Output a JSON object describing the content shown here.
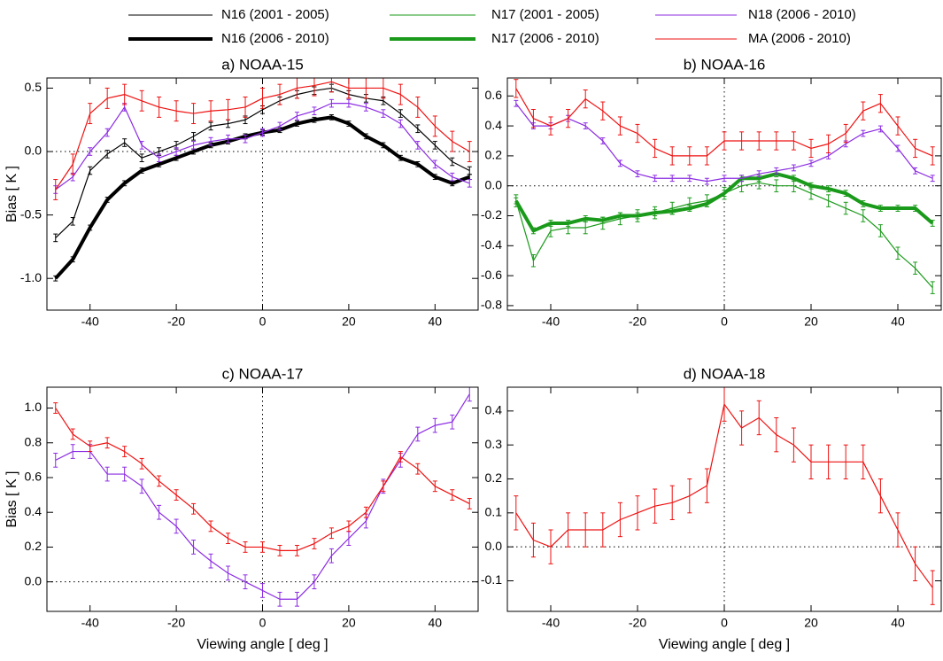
{
  "chart_data": [
    {
      "type": "line",
      "title": "a)  NOAA-15",
      "ylabel": "Bias [  K  ]",
      "x": [
        -48,
        -44,
        -40,
        -36,
        -32,
        -28,
        -24,
        -20,
        -16,
        -12,
        -8,
        -4,
        0,
        4,
        8,
        12,
        16,
        20,
        24,
        28,
        32,
        36,
        40,
        44,
        48
      ],
      "xlim": [
        -50,
        50
      ],
      "xticks": [
        -40,
        -20,
        0,
        20,
        40
      ],
      "ylim": [
        -1.25,
        0.58
      ],
      "yticks": [
        {
          "value": -1.0,
          "label": "-1.0"
        },
        -0.5,
        {
          "value": 0.0,
          "label": "0.0"
        },
        0.5
      ],
      "zero_lines": true,
      "series": [
        {
          "name": "N16 (2001 - 2005)",
          "color": "#000000",
          "thick": false,
          "error": 0.03,
          "values": [
            -0.68,
            -0.55,
            -0.15,
            -0.02,
            0.07,
            -0.05,
            0.0,
            0.05,
            0.12,
            0.2,
            0.22,
            0.25,
            0.33,
            0.4,
            0.45,
            0.48,
            0.5,
            0.45,
            0.42,
            0.4,
            0.3,
            0.18,
            0.05,
            -0.08,
            -0.15
          ]
        },
        {
          "name": "N16 (2006 - 2010)",
          "color": "#000000",
          "thick": true,
          "error": 0.02,
          "values": [
            -1.0,
            -0.85,
            -0.6,
            -0.38,
            -0.25,
            -0.15,
            -0.1,
            -0.05,
            0.0,
            0.05,
            0.08,
            0.12,
            0.15,
            0.17,
            0.22,
            0.25,
            0.27,
            0.22,
            0.12,
            0.05,
            -0.05,
            -0.1,
            -0.2,
            -0.25,
            -0.2
          ]
        },
        {
          "name": "N18 (2006 - 2010)",
          "color": "#8b2be2",
          "thick": false,
          "error": 0.03,
          "values": [
            -0.3,
            -0.2,
            0.0,
            0.15,
            0.35,
            0.05,
            -0.05,
            0.0,
            0.05,
            0.08,
            0.1,
            0.1,
            0.15,
            0.2,
            0.28,
            0.32,
            0.38,
            0.38,
            0.35,
            0.3,
            0.22,
            0.05,
            -0.1,
            -0.2,
            -0.25
          ]
        },
        {
          "name": "MA (2006 - 2010)",
          "color": "#ee1111",
          "thick": false,
          "error": 0.08,
          "values": [
            -0.3,
            -0.1,
            0.3,
            0.42,
            0.45,
            0.4,
            0.35,
            0.32,
            0.3,
            0.32,
            0.33,
            0.35,
            0.42,
            0.45,
            0.5,
            0.52,
            0.55,
            0.5,
            0.5,
            0.5,
            0.45,
            0.35,
            0.2,
            0.08,
            0.0
          ]
        }
      ]
    },
    {
      "type": "line",
      "title": "b)  NOAA-16",
      "x": [
        -48,
        -44,
        -40,
        -36,
        -32,
        -28,
        -24,
        -20,
        -16,
        -12,
        -8,
        -4,
        0,
        4,
        8,
        12,
        16,
        20,
        24,
        28,
        32,
        36,
        40,
        44,
        48
      ],
      "xlim": [
        -50,
        50
      ],
      "xticks": [
        -40,
        -20,
        0,
        20,
        40
      ],
      "ylim": [
        -0.83,
        0.72
      ],
      "yticks": [
        -0.8,
        -0.6,
        -0.4,
        -0.2,
        {
          "value": 0.0,
          "label": "0.0"
        },
        0.2,
        0.4,
        0.6
      ],
      "zero_lines": true,
      "series": [
        {
          "name": "N17 (2001 - 2005)",
          "color": "#1a9a1a",
          "thick": false,
          "error": 0.04,
          "values": [
            -0.1,
            -0.5,
            -0.3,
            -0.28,
            -0.28,
            -0.25,
            -0.22,
            -0.2,
            -0.18,
            -0.15,
            -0.12,
            -0.1,
            -0.05,
            0.0,
            0.02,
            0.0,
            0.0,
            -0.05,
            -0.1,
            -0.15,
            -0.2,
            -0.3,
            -0.45,
            -0.55,
            -0.68
          ]
        },
        {
          "name": "N17 (2006 - 2010)",
          "color": "#1a9a1a",
          "thick": true,
          "error": 0.02,
          "values": [
            -0.1,
            -0.3,
            -0.25,
            -0.25,
            -0.22,
            -0.23,
            -0.2,
            -0.2,
            -0.18,
            -0.17,
            -0.15,
            -0.12,
            -0.05,
            0.05,
            0.05,
            0.08,
            0.05,
            0.0,
            -0.02,
            -0.05,
            -0.12,
            -0.15,
            -0.15,
            -0.15,
            -0.25
          ]
        },
        {
          "color": "#8b2be2",
          "thick": false,
          "error": 0.02,
          "values": [
            0.55,
            0.4,
            0.4,
            0.45,
            0.4,
            0.3,
            0.15,
            0.08,
            0.05,
            0.05,
            0.05,
            0.03,
            0.05,
            0.05,
            0.08,
            0.1,
            0.12,
            0.15,
            0.2,
            0.28,
            0.35,
            0.38,
            0.25,
            0.1,
            0.05
          ]
        },
        {
          "color": "#ee1111",
          "thick": false,
          "error": 0.06,
          "values": [
            0.65,
            0.45,
            0.4,
            0.45,
            0.58,
            0.5,
            0.4,
            0.35,
            0.25,
            0.2,
            0.2,
            0.2,
            0.3,
            0.3,
            0.3,
            0.3,
            0.3,
            0.25,
            0.28,
            0.35,
            0.5,
            0.55,
            0.4,
            0.25,
            0.2
          ]
        }
      ]
    },
    {
      "type": "line",
      "title": "c)  NOAA-17",
      "ylabel": "Bias [  K  ]",
      "xlabel": "Viewing angle [ deg ]",
      "x": [
        -48,
        -44,
        -40,
        -36,
        -32,
        -28,
        -24,
        -20,
        -16,
        -12,
        -8,
        -4,
        0,
        4,
        8,
        12,
        16,
        20,
        24,
        28,
        32,
        36,
        40,
        44,
        48
      ],
      "xlim": [
        -50,
        50
      ],
      "xticks": [
        -40,
        -20,
        0,
        20,
        40
      ],
      "ylim": [
        -0.17,
        1.12
      ],
      "yticks": [
        {
          "value": 0.0,
          "label": "0.0"
        },
        0.2,
        0.4,
        0.6,
        0.8,
        {
          "value": 1.0,
          "label": "1.0"
        }
      ],
      "zero_lines": true,
      "series": [
        {
          "color": "#8b2be2",
          "thick": false,
          "error": 0.04,
          "values": [
            0.7,
            0.75,
            0.75,
            0.62,
            0.62,
            0.55,
            0.4,
            0.32,
            0.2,
            0.12,
            0.05,
            0.0,
            -0.05,
            -0.1,
            -0.1,
            0.0,
            0.15,
            0.25,
            0.35,
            0.55,
            0.7,
            0.85,
            0.9,
            0.92,
            1.08
          ]
        },
        {
          "color": "#ee1111",
          "thick": false,
          "error": 0.03,
          "values": [
            1.0,
            0.85,
            0.78,
            0.8,
            0.75,
            0.68,
            0.58,
            0.5,
            0.42,
            0.32,
            0.25,
            0.2,
            0.2,
            0.18,
            0.18,
            0.22,
            0.28,
            0.32,
            0.4,
            0.55,
            0.72,
            0.65,
            0.55,
            0.5,
            0.45
          ]
        }
      ]
    },
    {
      "type": "line",
      "title": "d)  NOAA-18",
      "xlabel": "Viewing angle [ deg ]",
      "x": [
        -48,
        -44,
        -40,
        -36,
        -32,
        -28,
        -24,
        -20,
        -16,
        -12,
        -8,
        -4,
        0,
        4,
        8,
        12,
        16,
        20,
        24,
        28,
        32,
        36,
        40,
        44,
        48
      ],
      "xlim": [
        -50,
        50
      ],
      "xticks": [
        -40,
        -20,
        0,
        20,
        40
      ],
      "ylim": [
        -0.19,
        0.47
      ],
      "yticks": [
        -0.1,
        {
          "value": 0.0,
          "label": "0.0"
        },
        0.1,
        0.2,
        0.3,
        0.4
      ],
      "zero_lines": true,
      "series": [
        {
          "color": "#ee1111",
          "thick": false,
          "error": 0.05,
          "values": [
            0.1,
            0.02,
            0.0,
            0.05,
            0.05,
            0.05,
            0.08,
            0.1,
            0.12,
            0.13,
            0.15,
            0.18,
            0.42,
            0.35,
            0.38,
            0.33,
            0.3,
            0.25,
            0.25,
            0.25,
            0.25,
            0.15,
            0.05,
            -0.05,
            -0.12
          ]
        }
      ]
    }
  ]
}
